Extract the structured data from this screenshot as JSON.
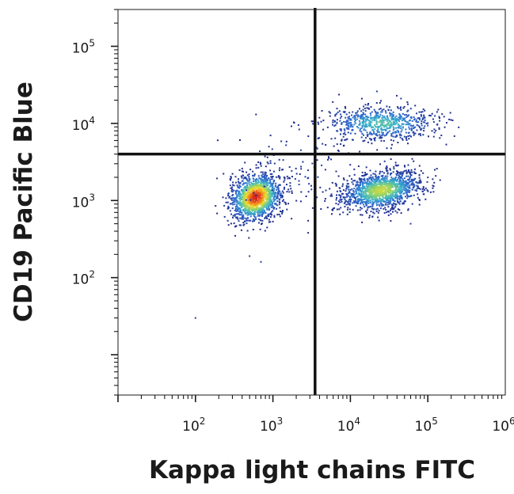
{
  "chart_data": {
    "type": "scatter",
    "subtype": "flow-cytometry-density-dot-plot",
    "xlabel": "Kappa light chains FITC",
    "ylabel": "CD19 Pacific Blue",
    "x_scale": "log",
    "y_scale": "log",
    "xlim": [
      10,
      1000000
    ],
    "ylim": [
      3,
      300000
    ],
    "x_ticks": [
      {
        "value": 100,
        "base": "10",
        "exp": "2"
      },
      {
        "value": 1000,
        "base": "10",
        "exp": "3"
      },
      {
        "value": 10000,
        "base": "10",
        "exp": "4"
      },
      {
        "value": 100000,
        "base": "10",
        "exp": "5"
      },
      {
        "value": 1000000,
        "base": "10",
        "exp": "6"
      }
    ],
    "y_ticks": [
      {
        "value": 100,
        "base": "10",
        "exp": "2"
      },
      {
        "value": 1000,
        "base": "10",
        "exp": "3"
      },
      {
        "value": 10000,
        "base": "10",
        "exp": "4"
      },
      {
        "value": 100000,
        "base": "10",
        "exp": "5"
      }
    ],
    "gates": {
      "x": 3500,
      "y": 4000
    },
    "grid": false,
    "legend": "none",
    "density_colormap": [
      "#1f2a8a",
      "#2f6bd0",
      "#39b3c9",
      "#8ed36a",
      "#f2dc2b",
      "#f07a1a",
      "#d71f1f"
    ],
    "populations": [
      {
        "x_center": 600,
        "y_center": 1100,
        "x_spread_decades": 0.17,
        "y_spread_decades": 0.14,
        "rotation_deg": 35,
        "relative_count": 1.0,
        "peak_density": 1.0
      },
      {
        "x_center": 25000,
        "y_center": 1350,
        "x_spread_decades": 0.26,
        "y_spread_decades": 0.12,
        "rotation_deg": 10,
        "relative_count": 1.0,
        "peak_density": 0.6
      },
      {
        "x_center": 25000,
        "y_center": 10000,
        "x_spread_decades": 0.36,
        "y_spread_decades": 0.11,
        "rotation_deg": 0,
        "relative_count": 0.5,
        "peak_density": 0.4
      },
      {
        "x_center": 2500,
        "y_center": 2500,
        "x_spread_decades": 0.4,
        "y_spread_decades": 0.3,
        "rotation_deg": 0,
        "relative_count": 0.08,
        "peak_density": 0.05
      }
    ],
    "outlier_events": [
      {
        "x": 100,
        "y": 30
      },
      {
        "x": 500,
        "y": 190
      },
      {
        "x": 700,
        "y": 160
      },
      {
        "x": 22000,
        "y": 26000
      },
      {
        "x": 45000,
        "y": 21000
      },
      {
        "x": 60000,
        "y": 500
      }
    ]
  },
  "colors": {
    "background": "#ffffff",
    "axes": "#1a1a1a",
    "gate_lines": "#111111"
  }
}
